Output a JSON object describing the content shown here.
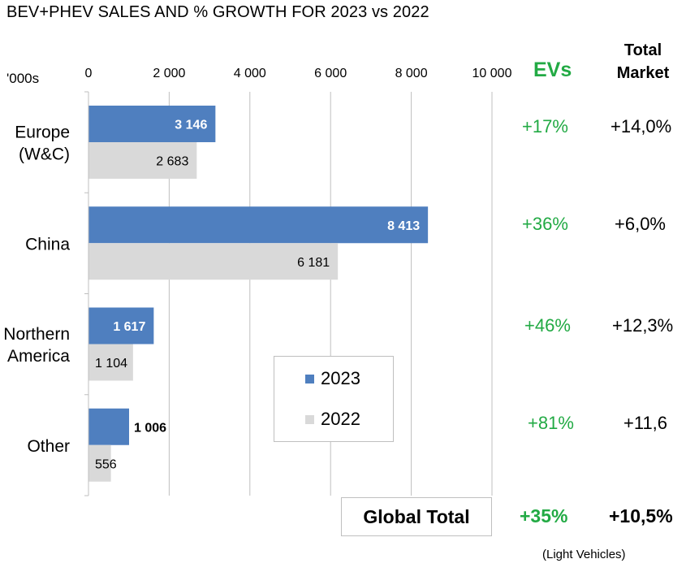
{
  "header": {
    "title": "BEV+PHEV SALES AND % GROWTH FOR 2023 vs 2022",
    "units": "'000s",
    "col_evs": "EVs",
    "col_total_line1": "Total",
    "col_total_line2": "Market"
  },
  "colors": {
    "series_2023": "#4f7fbf",
    "series_2022": "#d9d9d9",
    "ev_growth": "#22aa44",
    "grid": "#bfbfbf"
  },
  "chart_data": {
    "type": "bar",
    "orientation": "horizontal",
    "categories": [
      "Europe\n(W&C)",
      "China",
      "Northern\nAmerica",
      "Other"
    ],
    "series": [
      {
        "name": "2023",
        "values": [
          3146,
          8413,
          1617,
          1006
        ],
        "labels": [
          "3 146",
          "8 413",
          "1 617",
          "1 006"
        ]
      },
      {
        "name": "2022",
        "values": [
          2683,
          6181,
          1104,
          556
        ],
        "labels": [
          "2 683",
          "6 181",
          "1 104",
          "556"
        ]
      }
    ],
    "xlim": [
      0,
      10000
    ],
    "xticks": [
      0,
      2000,
      4000,
      6000,
      8000,
      10000
    ],
    "xtick_labels": [
      "0",
      "2 000",
      "4 000",
      "6 000",
      "8 000",
      "10 000"
    ],
    "grid": true,
    "legend_position": "bottom-center"
  },
  "growth_rows": [
    {
      "ev": "+17%",
      "total": "+14,0%"
    },
    {
      "ev": "+36%",
      "total": "+6,0%"
    },
    {
      "ev": "+46%",
      "total": "+12,3%"
    },
    {
      "ev": "+81%",
      "total": "+11,6"
    }
  ],
  "global": {
    "label": "Global Total",
    "ev": "+35%",
    "total": "+10,5%"
  },
  "footnote": "(Light Vehicles)"
}
